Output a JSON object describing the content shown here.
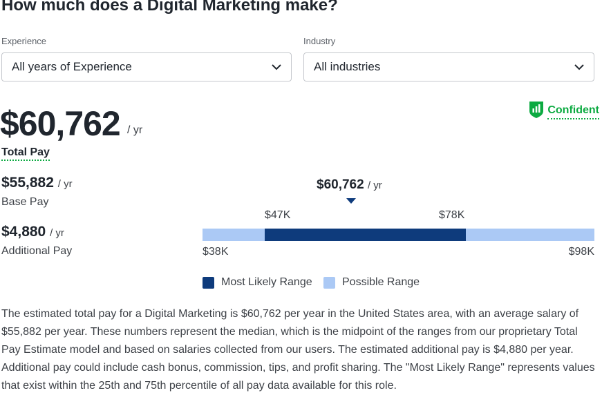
{
  "title": "How much does a Digital Marketing make?",
  "filters": {
    "experience": {
      "label": "Experience",
      "value": "All years of Experience"
    },
    "industry": {
      "label": "Industry",
      "value": "All industries"
    }
  },
  "total_pay": {
    "amount": "$60,762",
    "unit": "/ yr",
    "label": "Total Pay"
  },
  "confidence": {
    "label": "Confident",
    "icon": "shield-bar-chart-icon",
    "color": "#0caa41"
  },
  "base_pay": {
    "amount": "$55,882",
    "unit": "/ yr",
    "label": "Base Pay"
  },
  "additional_pay": {
    "amount": "$4,880",
    "unit": "/ yr",
    "label": "Additional Pay"
  },
  "range": {
    "median": "$60,762",
    "median_unit": "/ yr",
    "likely_low": "$47K",
    "likely_high": "$78K",
    "possible_low": "$38K",
    "possible_high": "$98K",
    "colors": {
      "likely": "#0e3b7c",
      "possible": "#abc9f5"
    }
  },
  "legend": {
    "likely": "Most Likely Range",
    "possible": "Possible Range"
  },
  "description": "The estimated total pay for a Digital Marketing is $60,762 per year in the United States area, with an average salary of $55,882 per year. These numbers represent the median, which is the midpoint of the ranges from our proprietary Total Pay Estimate model and based on salaries collected from our users. The estimated additional pay is $4,880 per year. Additional pay could include cash bonus, commission, tips, and profit sharing. The \"Most Likely Range\" represents values that exist within the 25th and 75th percentile of all pay data available for this role."
}
